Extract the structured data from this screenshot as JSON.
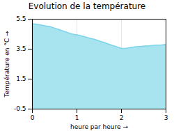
{
  "chart_data": {
    "type": "area",
    "title": "Evolution de la température",
    "xlabel": "heure par heure",
    "ylabel": "Température en °C",
    "x": [
      0,
      0.1,
      0.2,
      0.3,
      0.4,
      0.5,
      0.6,
      0.7,
      0.8,
      0.9,
      1.0,
      1.1,
      1.2,
      1.3,
      1.4,
      1.5,
      1.6,
      1.7,
      1.8,
      1.9,
      2.0,
      2.1,
      2.2,
      2.3,
      2.4,
      2.5,
      2.6,
      2.7,
      2.8,
      2.9,
      3.0
    ],
    "values": [
      5.2,
      5.15,
      5.1,
      5.05,
      5.0,
      4.9,
      4.8,
      4.7,
      4.6,
      4.5,
      4.45,
      4.38,
      4.3,
      4.22,
      4.15,
      4.05,
      3.95,
      3.85,
      3.75,
      3.65,
      3.55,
      3.55,
      3.6,
      3.65,
      3.68,
      3.7,
      3.72,
      3.75,
      3.77,
      3.78,
      3.8
    ],
    "xlim": [
      0,
      3
    ],
    "ylim": [
      -0.5,
      5.5
    ],
    "xticks": [
      0,
      1,
      2,
      3
    ],
    "yticks": [
      -0.5,
      1.5,
      3.5,
      5.5
    ],
    "colors": [
      "#a8e4f0",
      "#7dd4e8"
    ],
    "grid": true
  }
}
